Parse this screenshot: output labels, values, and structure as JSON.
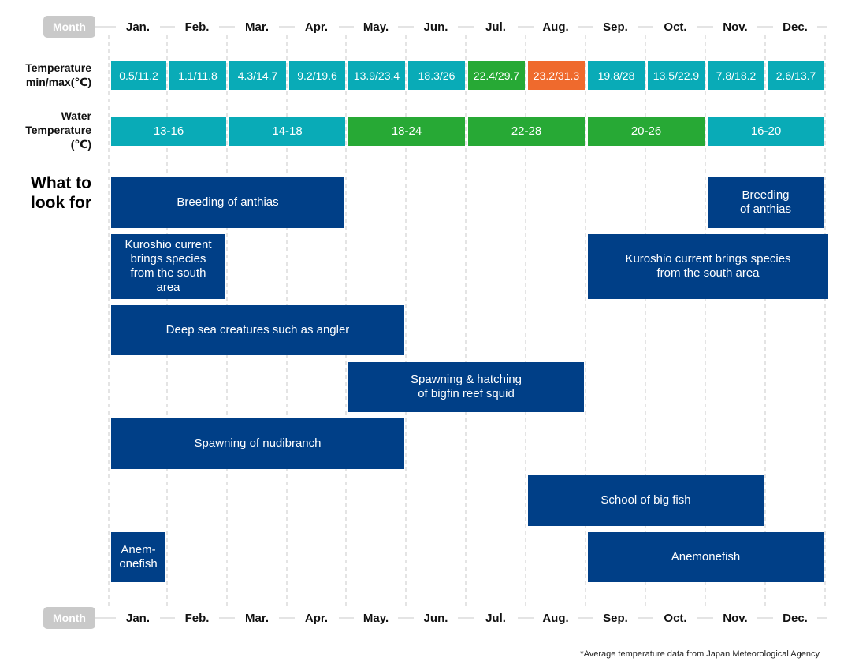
{
  "months": [
    "Jan.",
    "Feb.",
    "Mar.",
    "Apr.",
    "May.",
    "Jun.",
    "Jul.",
    "Aug.",
    "Sep.",
    "Oct.",
    "Nov.",
    "Dec."
  ],
  "month_badge": "Month",
  "colors": {
    "teal": "#09abb7",
    "green": "#27a935",
    "orange": "#ef6a2d",
    "navy": "#003f87",
    "badge": "#c9c9c9"
  },
  "air_temperature": {
    "label_line1": "Temperature",
    "label_line2": "min/max(℃)",
    "values": [
      {
        "text": "0.5/11.2",
        "color": "teal"
      },
      {
        "text": "1.1/11.8",
        "color": "teal"
      },
      {
        "text": "4.3/14.7",
        "color": "teal"
      },
      {
        "text": "9.2/19.6",
        "color": "teal"
      },
      {
        "text": "13.9/23.4",
        "color": "teal"
      },
      {
        "text": "18.3/26",
        "color": "teal"
      },
      {
        "text": "22.4/29.7",
        "color": "green"
      },
      {
        "text": "23.2/31.3",
        "color": "orange"
      },
      {
        "text": "19.8/28",
        "color": "teal"
      },
      {
        "text": "13.5/22.9",
        "color": "teal"
      },
      {
        "text": "7.8/18.2",
        "color": "teal"
      },
      {
        "text": "2.6/13.7",
        "color": "teal"
      }
    ]
  },
  "water_temperature": {
    "label_line1": "Water",
    "label_line2": "Temperature",
    "label_line3": "(℃)",
    "segments": [
      {
        "text": "13-16",
        "start_month": 1,
        "end_month": 2,
        "color": "teal"
      },
      {
        "text": "14-18",
        "start_month": 3,
        "end_month": 4,
        "color": "teal"
      },
      {
        "text": "18-24",
        "start_month": 5,
        "end_month": 6,
        "color": "green"
      },
      {
        "text": "22-28",
        "start_month": 7,
        "end_month": 8,
        "color": "green"
      },
      {
        "text": "20-26",
        "start_month": 9,
        "end_month": 10,
        "color": "green"
      },
      {
        "text": "16-20",
        "start_month": 11,
        "end_month": 12,
        "color": "teal"
      }
    ]
  },
  "what_to_look_for": {
    "label_line1": "What to",
    "label_line2": "look for",
    "items": [
      {
        "lines": [
          "Breeding of anthias"
        ],
        "start_month": 1,
        "end_month": 4,
        "row": 0
      },
      {
        "lines": [
          "Breeding",
          "of anthias"
        ],
        "start_month": 11,
        "end_month": 12,
        "row": 0
      },
      {
        "lines": [
          "Kuroshio current",
          "brings species",
          "from the south",
          "area"
        ],
        "start_month": 1,
        "end_month": 2,
        "row": 1
      },
      {
        "lines": [
          "Kuroshio current brings species",
          "from the south area"
        ],
        "start_month": 9,
        "end_month": 12,
        "row": 1
      },
      {
        "lines": [
          "Deep sea creatures such as angler"
        ],
        "start_month": 1,
        "end_month": 5,
        "row": 2
      },
      {
        "lines": [
          "Spawning & hatching",
          "of bigfin reef squid"
        ],
        "start_month": 5,
        "end_month": 8,
        "row": 3
      },
      {
        "lines": [
          "Spawning of nudibranch"
        ],
        "start_month": 1,
        "end_month": 5,
        "row": 4
      },
      {
        "lines": [
          "School of big fish"
        ],
        "start_month": 8,
        "end_month": 11,
        "row": 5
      },
      {
        "lines": [
          "Anem-",
          "onefish"
        ],
        "start_month": 1,
        "end_month": 1,
        "row": 6
      },
      {
        "lines": [
          "Anemonefish"
        ],
        "start_month": 9,
        "end_month": 12,
        "row": 6
      }
    ]
  },
  "footnote": "*Average temperature data from Japan Meteorological Agency"
}
